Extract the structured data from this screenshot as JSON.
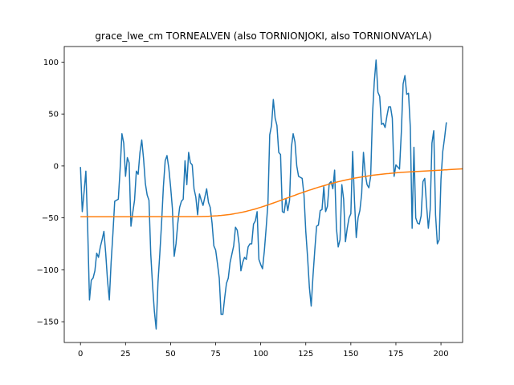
{
  "chart_data": {
    "type": "line",
    "title": "grace_lwe_cm TORNEALVEN (also TORNIONJOKI, also TORNIONVAYLA)",
    "xlabel": "",
    "ylabel": "",
    "xlim": [
      -9,
      212
    ],
    "ylim": [
      -170,
      115
    ],
    "x_ticks": [
      0,
      25,
      50,
      75,
      100,
      125,
      150,
      175,
      200
    ],
    "y_ticks": [
      -150,
      -100,
      -50,
      0,
      50,
      100
    ],
    "grid": false,
    "colors": {
      "series_1": "#1f77b4",
      "series_2": "#ff7f0e"
    },
    "series": [
      {
        "values": [
          -1,
          -44,
          -25,
          -5,
          -60,
          -129,
          -110,
          -108,
          -101,
          -84,
          -88,
          -78,
          -71,
          -63,
          -84,
          -110,
          -129,
          -93,
          -65,
          -34,
          -33,
          -32,
          -3,
          31,
          22,
          -10,
          8,
          3,
          -58,
          -45,
          -33,
          -5,
          -8,
          13,
          25,
          7,
          -17,
          -28,
          -33,
          -85,
          -115,
          -140,
          -157,
          -112,
          -85,
          -55,
          -20,
          5,
          10,
          -2,
          -20,
          -41,
          -87,
          -75,
          -55,
          -40,
          -34,
          -32,
          5,
          -18,
          13,
          3,
          1,
          -22,
          -30,
          -47,
          -27,
          -33,
          -38,
          -30,
          -22,
          -35,
          -40,
          -55,
          -77,
          -81,
          -94,
          -108,
          -143,
          -143,
          -127,
          -113,
          -108,
          -93,
          -85,
          -77,
          -59,
          -62,
          -75,
          -101,
          -93,
          -88,
          -90,
          -78,
          -75,
          -75,
          -56,
          -53,
          -44,
          -90,
          -95,
          -99,
          -82,
          -60,
          -36,
          30,
          39,
          64,
          46,
          39,
          13,
          11,
          -44,
          -45,
          -32,
          -43,
          -33,
          18,
          31,
          23,
          0,
          -10,
          -11,
          -12,
          -28,
          -63,
          -88,
          -117,
          -135,
          -106,
          -81,
          -58,
          -57,
          -43,
          -42,
          -20,
          -44,
          -39,
          -17,
          -15,
          -22,
          -4,
          -60,
          -78,
          -71,
          -18,
          -32,
          -73,
          -60,
          -50,
          -46,
          14,
          -33,
          -69,
          -50,
          -43,
          -27,
          13,
          -8,
          -18,
          -21,
          -10,
          49,
          81,
          102,
          71,
          67,
          40,
          41,
          37,
          48,
          57,
          57,
          46,
          -10,
          1,
          -1,
          -3,
          32,
          79,
          87,
          69,
          70,
          37,
          -60,
          18,
          -50,
          -55,
          -56,
          -48,
          -15,
          -12,
          -38,
          -60,
          -42,
          22,
          34,
          -47,
          -75,
          -71,
          -13,
          14,
          27,
          42
        ]
      },
      {
        "values": [
          -48.9,
          -48.9,
          -48.9,
          -48.9,
          -48.9,
          -48.9,
          -48.9,
          -48.9,
          -48.9,
          -48.9,
          -48.9,
          -48.9,
          -48.9,
          -48.9,
          -48.9,
          -48.9,
          -48.9,
          -48.9,
          -48.9,
          -48.9,
          -48.9,
          -48.9,
          -48.9,
          -48.9,
          -48.9,
          -48.9,
          -48.9,
          -48.9,
          -48.9,
          -48.9,
          -48.9,
          -48.9,
          -48.8,
          -48.8,
          -48.8,
          -48.8,
          -48.8,
          -48.8,
          -48.8,
          -48.8,
          -48.8,
          -48.8,
          -48.8,
          -48.8,
          -48.8,
          -48.8,
          -48.8,
          -48.8,
          -48.8,
          -48.8,
          -48.8,
          -48.8,
          -48.8,
          -48.8,
          -48.8,
          -48.8,
          -48.8,
          -48.8,
          -48.8,
          -48.8,
          -48.8,
          -48.8,
          -48.8,
          -48.8,
          -48.8,
          -48.7,
          -48.7,
          -48.7,
          -48.6,
          -48.6,
          -48.5,
          -48.5,
          -48.4,
          -48.3,
          -48.2,
          -48.1,
          -48.0,
          -47.8,
          -47.7,
          -47.5,
          -47.3,
          -47.1,
          -46.9,
          -46.7,
          -46.4,
          -46.1,
          -45.8,
          -45.5,
          -45.2,
          -44.8,
          -44.5,
          -44.1,
          -43.7,
          -43.2,
          -42.8,
          -42.3,
          -41.9,
          -41.4,
          -40.9,
          -40.3,
          -39.8,
          -39.2,
          -38.7,
          -38.1,
          -37.5,
          -36.9,
          -36.3,
          -35.7,
          -35.1,
          -34.5,
          -33.8,
          -33.2,
          -32.6,
          -31.9,
          -31.3,
          -30.7,
          -30.0,
          -29.4,
          -28.8,
          -28.2,
          -27.5,
          -26.9,
          -26.3,
          -25.7,
          -25.1,
          -24.5,
          -23.9,
          -23.3,
          -22.8,
          -22.2,
          -21.6,
          -21.1,
          -20.5,
          -20.0,
          -19.5,
          -19.0,
          -18.5,
          -18.0,
          -17.5,
          -17.0,
          -16.5,
          -16.1,
          -15.6,
          -15.2,
          -14.8,
          -14.4,
          -14.0,
          -13.6,
          -13.2,
          -12.8,
          -12.5,
          -12.1,
          -11.8,
          -11.5,
          -11.2,
          -10.9,
          -10.6,
          -10.3,
          -10.0,
          -9.8,
          -9.5,
          -9.3,
          -9.0,
          -8.8,
          -8.6,
          -8.4,
          -8.2,
          -8.0,
          -7.8,
          -7.6,
          -7.4,
          -7.3,
          -7.1,
          -6.9,
          -6.8,
          -6.6,
          -6.5,
          -6.4,
          -6.2,
          -6.1,
          -6.0,
          -5.9,
          -5.8,
          -5.7,
          -5.6,
          -5.5,
          -5.4,
          -5.3,
          -5.2,
          -5.1,
          -5.0,
          -4.9,
          -4.8,
          -4.7,
          -4.6,
          -4.5,
          -4.4,
          -4.3,
          -4.2,
          -4.1,
          -4.0,
          -3.9,
          -3.8,
          -3.7,
          -3.6,
          -3.5,
          -3.4,
          -3.3,
          -3.2,
          -3.1,
          -3.0,
          -2.9,
          -2.8
        ]
      }
    ]
  }
}
